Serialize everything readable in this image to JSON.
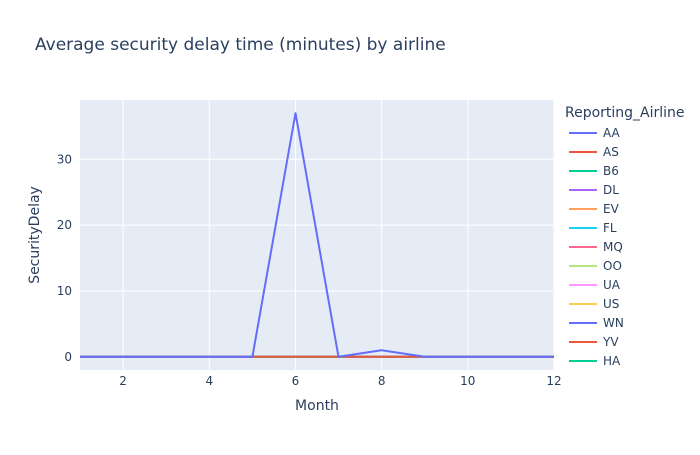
{
  "chart_data": {
    "type": "line",
    "title": "Average security delay time (minutes) by airline",
    "xlabel": "Month",
    "ylabel": "SecurityDelay",
    "x_ticks": [
      2,
      4,
      6,
      8,
      10,
      12
    ],
    "y_ticks": [
      0,
      10,
      20,
      30
    ],
    "xlim": [
      1,
      12
    ],
    "ylim": [
      -2,
      39
    ],
    "grid": true,
    "legend_title": "Reporting_Airline",
    "legend_placement": "right",
    "x": [
      1,
      2,
      3,
      4,
      5,
      6,
      7,
      8,
      9,
      10,
      11,
      12
    ],
    "series": [
      {
        "name": "AA",
        "color": "#636efa",
        "values": [
          0,
          0,
          0,
          0,
          0,
          37,
          0,
          1,
          0,
          0,
          0,
          0
        ]
      },
      {
        "name": "AS",
        "color": "#EF553B",
        "values": [
          0,
          0,
          0,
          0,
          0,
          0,
          0,
          0,
          0,
          0,
          0,
          0
        ]
      },
      {
        "name": "B6",
        "color": "#00cc96",
        "values": [
          0,
          0,
          0,
          0,
          0,
          0,
          0,
          0,
          0,
          0,
          0,
          0
        ]
      },
      {
        "name": "DL",
        "color": "#ab63fa",
        "values": [
          0,
          0,
          0,
          0,
          0,
          0,
          0,
          0,
          0,
          0,
          0,
          0
        ]
      },
      {
        "name": "EV",
        "color": "#FFA15A",
        "values": [
          0,
          0,
          0,
          0,
          0,
          0,
          0,
          0,
          0,
          0,
          0,
          0
        ]
      },
      {
        "name": "FL",
        "color": "#19d3f3",
        "values": [
          0,
          0,
          0,
          0,
          0,
          0,
          0,
          0,
          0,
          0,
          0,
          0
        ]
      },
      {
        "name": "MQ",
        "color": "#FF6692",
        "values": [
          0,
          0,
          0,
          0,
          0,
          0,
          0,
          0,
          0,
          0,
          0,
          0
        ]
      },
      {
        "name": "OO",
        "color": "#B6E880",
        "values": [
          0,
          0,
          0,
          0,
          0,
          0,
          0,
          0,
          0,
          0,
          0,
          0
        ]
      },
      {
        "name": "UA",
        "color": "#FF97FF",
        "values": [
          0,
          0,
          0,
          0,
          0,
          0,
          0,
          0,
          0,
          0,
          0,
          0
        ]
      },
      {
        "name": "US",
        "color": "#FECB52",
        "values": [
          0,
          0,
          0,
          0,
          0,
          0,
          0,
          0,
          0,
          0,
          0,
          0
        ]
      },
      {
        "name": "WN",
        "color": "#636efa",
        "values": [
          0,
          0,
          0,
          0,
          0,
          0,
          0,
          0,
          0,
          0,
          0,
          0
        ]
      },
      {
        "name": "YV",
        "color": "#EF553B",
        "values": [
          0,
          0,
          0,
          0,
          0,
          0,
          0,
          0,
          0,
          0,
          0,
          0
        ]
      },
      {
        "name": "HA",
        "color": "#00cc96",
        "values": [
          0,
          0,
          0,
          0,
          0,
          0,
          0,
          0,
          0,
          0,
          0,
          0
        ]
      }
    ],
    "colors": {
      "plot_background": "#E5ECF6",
      "gridline": "#ffffff",
      "text": "#2a3f5f"
    }
  }
}
